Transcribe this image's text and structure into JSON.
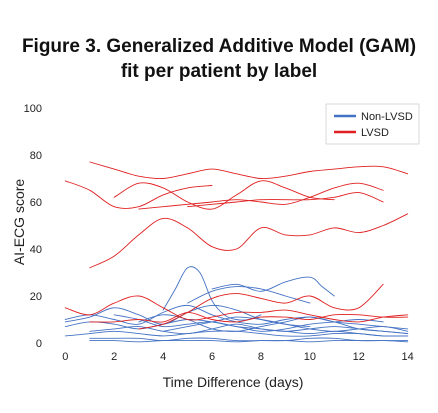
{
  "figure": {
    "title_line1": "Figure 3. Generalized Additive Model (GAM)",
    "title_line2": "fit per patient by label"
  },
  "chart_data": {
    "type": "line",
    "title": "Figure 3. Generalized Additive Model (GAM) fit per patient by label",
    "xlabel": "Time Difference (days)",
    "ylabel": "AI-ECG score",
    "xlim": [
      -0.3,
      14.3
    ],
    "ylim": [
      0,
      100
    ],
    "xticks": [
      0,
      2,
      4,
      6,
      8,
      10,
      12,
      14
    ],
    "yticks": [
      0,
      20,
      40,
      60,
      80,
      100
    ],
    "grid": false,
    "legend": {
      "position": "top-right",
      "entries": [
        {
          "label": "Non-LVSD",
          "color": "#4472c4"
        },
        {
          "label": "LVSD",
          "color": "#e02020"
        }
      ]
    },
    "colors": {
      "Non-LVSD": "#4472c4",
      "LVSD": "#e02020"
    },
    "series": [
      {
        "label": "LVSD",
        "x": [
          1,
          2,
          3,
          4,
          5,
          6,
          7,
          8,
          9,
          10,
          11,
          12,
          13,
          14
        ],
        "y": [
          77,
          74,
          71,
          70,
          72,
          74,
          72,
          70,
          71,
          73,
          74,
          75,
          75,
          72
        ]
      },
      {
        "label": "LVSD",
        "x": [
          0,
          1,
          2,
          3,
          4,
          5,
          6
        ],
        "y": [
          69,
          65,
          58,
          58,
          63,
          66,
          67
        ]
      },
      {
        "label": "LVSD",
        "x": [
          2,
          3,
          4,
          5,
          6,
          7,
          8,
          9,
          10,
          11
        ],
        "y": [
          62,
          68,
          66,
          60,
          57,
          63,
          69,
          66,
          62,
          61
        ]
      },
      {
        "label": "LVSD",
        "x": [
          3,
          4,
          5,
          6,
          7,
          8,
          9,
          10,
          11,
          12,
          13
        ],
        "y": [
          57,
          58,
          59,
          60,
          61,
          60,
          59,
          62,
          66,
          68,
          65
        ]
      },
      {
        "label": "LVSD",
        "x": [
          5,
          6,
          7,
          8,
          9,
          10,
          11,
          12,
          13
        ],
        "y": [
          58,
          59,
          60,
          61,
          61,
          61,
          62,
          64,
          60
        ]
      },
      {
        "label": "LVSD",
        "x": [
          1,
          2,
          3,
          4,
          5,
          6,
          7,
          8,
          9,
          10,
          11,
          12,
          13,
          14
        ],
        "y": [
          32,
          37,
          46,
          53,
          49,
          41,
          40,
          49,
          46,
          46,
          49,
          47,
          50,
          55
        ]
      },
      {
        "label": "LVSD",
        "x": [
          3,
          4,
          5,
          6,
          7,
          8,
          9,
          10,
          11,
          12,
          13
        ],
        "y": [
          6,
          8,
          13,
          19,
          21,
          19,
          17,
          20,
          15,
          15,
          25
        ]
      },
      {
        "label": "LVSD",
        "x": [
          0,
          1,
          2,
          3,
          4,
          5,
          6,
          7,
          8,
          9,
          10,
          11,
          12,
          13,
          14
        ],
        "y": [
          15,
          12,
          17,
          20,
          15,
          10,
          11,
          13,
          13,
          14,
          12,
          10,
          9,
          11,
          12
        ]
      },
      {
        "label": "LVSD",
        "x": [
          1,
          2,
          3,
          4,
          5,
          6,
          7,
          8,
          9,
          10,
          11,
          12,
          13,
          14
        ],
        "y": [
          9,
          9,
          10,
          9,
          13,
          10,
          9,
          11,
          11,
          10,
          12,
          12,
          11,
          11
        ]
      },
      {
        "label": "Non-LVSD",
        "x": [
          4,
          4.5,
          5,
          5.5,
          6,
          6.5,
          7,
          7.5,
          8
        ],
        "y": [
          14,
          23,
          32,
          30,
          18,
          12,
          10,
          10,
          12
        ]
      },
      {
        "label": "Non-LVSD",
        "x": [
          5,
          6,
          7,
          8,
          9,
          10
        ],
        "y": [
          17,
          22,
          24,
          23,
          20,
          17
        ]
      },
      {
        "label": "Non-LVSD",
        "x": [
          6,
          7,
          8,
          9,
          10,
          10.5,
          11
        ],
        "y": [
          23,
          25,
          22,
          26,
          28,
          24,
          20
        ]
      },
      {
        "label": "Non-LVSD",
        "x": [
          0,
          1,
          2,
          3,
          4,
          5,
          6,
          7,
          8,
          9,
          10
        ],
        "y": [
          9,
          11,
          15,
          12,
          8,
          13,
          16,
          14,
          10,
          8,
          7
        ]
      },
      {
        "label": "Non-LVSD",
        "x": [
          0,
          1,
          2,
          3,
          4,
          5,
          6,
          7,
          8,
          9,
          10,
          11,
          12,
          13,
          14
        ],
        "y": [
          10,
          12,
          10,
          8,
          13,
          16,
          12,
          9,
          8,
          10,
          11,
          9,
          8,
          7,
          6
        ]
      },
      {
        "label": "Non-LVSD",
        "x": [
          0,
          1,
          2,
          3,
          4,
          5,
          6,
          7,
          8,
          9,
          10,
          11,
          12,
          13,
          14
        ],
        "y": [
          7,
          9,
          8,
          6,
          8,
          10,
          9,
          7,
          6,
          5,
          6,
          7,
          6,
          5,
          4
        ]
      },
      {
        "label": "Non-LVSD",
        "x": [
          1,
          2,
          3,
          4,
          5,
          6,
          7,
          8,
          9,
          10,
          11,
          12,
          13,
          14
        ],
        "y": [
          5,
          6,
          7,
          5,
          4,
          6,
          8,
          6,
          5,
          4,
          5,
          4,
          3,
          3
        ]
      },
      {
        "label": "Non-LVSD",
        "x": [
          0,
          1,
          2,
          3,
          4,
          5,
          6,
          7,
          8,
          9,
          10,
          11,
          12,
          13,
          14
        ],
        "y": [
          3,
          4,
          5,
          4,
          3,
          4,
          5,
          5,
          4,
          3,
          3,
          4,
          4,
          3,
          3
        ]
      },
      {
        "label": "Non-LVSD",
        "x": [
          2,
          3,
          4,
          5,
          6,
          7,
          8,
          9,
          10,
          11,
          12,
          13
        ],
        "y": [
          12,
          10,
          7,
          8,
          9,
          7,
          5,
          6,
          8,
          9,
          10,
          9
        ]
      },
      {
        "label": "Non-LVSD",
        "x": [
          1,
          2,
          3,
          4,
          5,
          6,
          7,
          8,
          9,
          10,
          11,
          12,
          13,
          14
        ],
        "y": [
          2,
          2,
          2,
          1,
          2,
          2,
          1,
          1,
          1,
          2,
          2,
          1,
          1,
          1
        ]
      },
      {
        "label": "Non-LVSD",
        "x": [
          1,
          2,
          3,
          4,
          5,
          6,
          7,
          8,
          9,
          10,
          11,
          12,
          13,
          14
        ],
        "y": [
          1,
          1,
          0.5,
          1,
          1,
          1,
          0.5,
          1,
          1,
          0.5,
          1,
          1,
          1,
          0.5
        ]
      },
      {
        "label": "Non-LVSD",
        "x": [
          4,
          5,
          6,
          7,
          8,
          9,
          10,
          11,
          12,
          13,
          14
        ],
        "y": [
          5,
          7,
          9,
          11,
          10,
          8,
          6,
          5,
          6,
          7,
          5
        ]
      },
      {
        "label": "Non-LVSD",
        "x": [
          3,
          4,
          5,
          6,
          7,
          8,
          9,
          10,
          11,
          12,
          13,
          14
        ],
        "y": [
          9,
          12,
          10,
          6,
          5,
          7,
          9,
          11,
          9,
          6,
          5,
          4
        ]
      }
    ]
  }
}
